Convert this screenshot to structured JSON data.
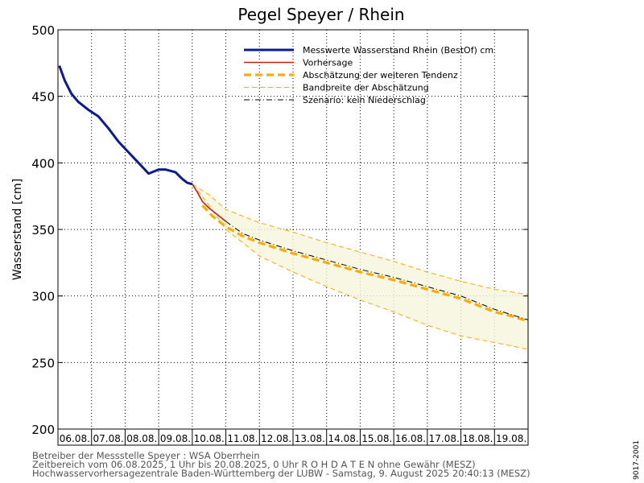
{
  "chart_data": {
    "type": "line",
    "title": "Pegel Speyer / Rhein",
    "ylabel": "Wasserstand [cm]",
    "xlabel": "",
    "ylim": [
      200,
      500
    ],
    "yticks": [
      200,
      250,
      300,
      350,
      400,
      450,
      500
    ],
    "xlim": [
      0,
      14
    ],
    "xticks": [
      0,
      1,
      2,
      3,
      4,
      5,
      6,
      7,
      8,
      9,
      10,
      11,
      12,
      13,
      14
    ],
    "x_unit": "days since 06.08.2025 00:00",
    "grid": true,
    "legend_position": "top-right",
    "categories": [
      "06.08.",
      "07.08.",
      "08.08.",
      "09.08.",
      "10.08.",
      "11.08.",
      "12.08.",
      "13.08.",
      "14.08.",
      "15.08.",
      "16.08.",
      "17.08.",
      "18.08.",
      "19.08."
    ],
    "series": [
      {
        "name": "Messwerte Wasserstand Rhein (BestOf)  cm",
        "color": "#0a1a9a",
        "style": "solid-thick",
        "x": [
          0.04,
          0.2,
          0.4,
          0.6,
          0.9,
          1.2,
          1.5,
          1.8,
          2.1,
          2.4,
          2.7,
          3.0,
          3.2,
          3.5,
          3.7,
          3.85,
          4.0
        ],
        "y": [
          473,
          462,
          452,
          446,
          440,
          435,
          426,
          416,
          408,
          400,
          392,
          395,
          395,
          393,
          388,
          385,
          384
        ]
      },
      {
        "name": "Vorhersage",
        "color": "#c81e0a",
        "style": "solid",
        "x": [
          4.0,
          4.15,
          4.3,
          4.5,
          4.7,
          4.9,
          5.0
        ],
        "y": [
          384,
          378,
          371,
          366,
          362,
          358,
          356
        ]
      },
      {
        "name": "Abschätzung der weiteren Tendenz",
        "color": "#ffaa00",
        "style": "dashed-thick",
        "x": [
          4.3,
          4.6,
          5.0,
          5.5,
          6.0,
          7.0,
          8.0,
          9.0,
          10.0,
          11.0,
          12.0,
          12.5,
          13.0,
          13.5,
          14.0
        ],
        "y": [
          368,
          360,
          352,
          345,
          340,
          332,
          325,
          318,
          312,
          305,
          298,
          293,
          288,
          285,
          281
        ]
      },
      {
        "name": "Bandbreite der Abschätzung",
        "color": "#ffaa00",
        "style": "dashed-thin-band",
        "x": [
          4.0,
          4.5,
          5.0,
          6.0,
          7.0,
          8.0,
          9.0,
          10.0,
          11.0,
          12.0,
          13.0,
          14.0
        ],
        "upper": [
          384,
          376,
          365,
          355,
          348,
          340,
          333,
          326,
          318,
          311,
          305,
          301
        ],
        "lower": [
          384,
          368,
          350,
          330,
          318,
          307,
          297,
          288,
          278,
          270,
          265,
          260
        ]
      },
      {
        "name": "Szenario: kein Niederschlag",
        "color": "#000000",
        "style": "dashdot",
        "x": [
          5.0,
          5.5,
          6.0,
          7.0,
          8.0,
          9.0,
          10.0,
          11.0,
          12.0,
          12.5,
          13.0,
          13.5,
          14.0
        ],
        "y": [
          356,
          347,
          342,
          334,
          327,
          320,
          314,
          307,
          300,
          295,
          290,
          286,
          282
        ]
      }
    ]
  },
  "footer": {
    "line1": "Betreiber der Messstelle Speyer : WSA Oberrhein",
    "line2": "Zeitbereich vom 06.08.2025, 1 Uhr bis 20.08.2025, 0 Uhr    R O H D A T E N  ohne Gewähr (MESZ)",
    "line3": "Hochwasservorhersagezentrale Baden-Württemberg der LUBW - Samstag, 9. August 2025 20:40:13 (MESZ)"
  },
  "side_label": "9017-2001"
}
